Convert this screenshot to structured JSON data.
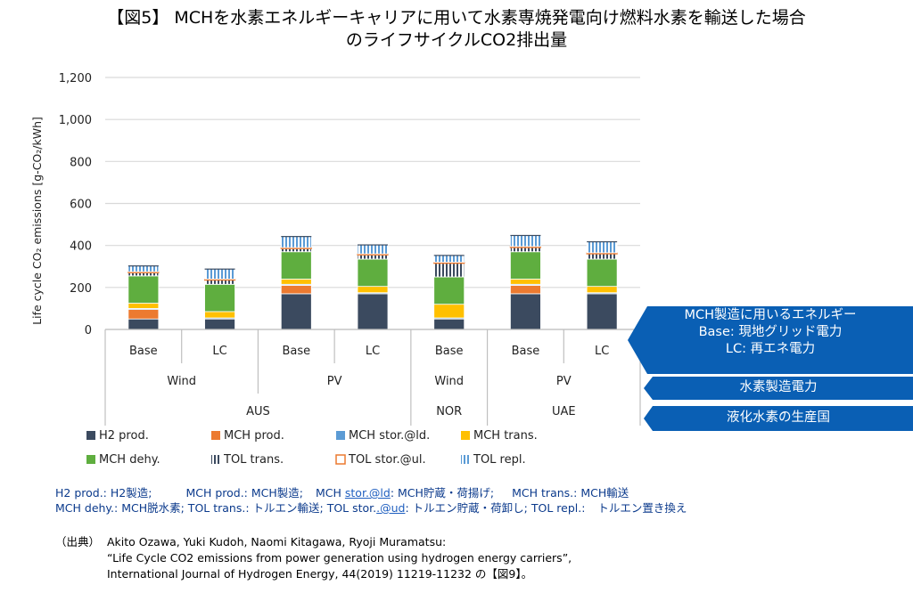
{
  "title": {
    "line1": "【図5】 MCHを水素エネルギーキャリアに用いて水素専焼発電向け燃料水素を輸送した場合",
    "line2": "のライフサイクルCO2排出量"
  },
  "chart_data": {
    "type": "bar",
    "stacked": true,
    "ylabel": "Life cycle CO₂ emissions [g-CO₂/kWh]",
    "ylim": [
      0,
      1200
    ],
    "yticks": [
      "0",
      "200",
      "400",
      "600",
      "800",
      "1,000",
      "1,200"
    ],
    "grid": true,
    "categories": [
      "Base",
      "LC",
      "Base",
      "LC",
      "Base",
      "Base",
      "LC"
    ],
    "groups_source": [
      {
        "label": "Wind",
        "span": [
          0,
          1
        ]
      },
      {
        "label": "PV",
        "span": [
          2,
          3
        ]
      },
      {
        "label": "Wind",
        "span": [
          4,
          4
        ]
      },
      {
        "label": "PV",
        "span": [
          5,
          6
        ]
      }
    ],
    "groups_country": [
      {
        "label": "AUS",
        "span": [
          0,
          3
        ]
      },
      {
        "label": "NOR",
        "span": [
          4,
          4
        ]
      },
      {
        "label": "UAE",
        "span": [
          5,
          6
        ]
      }
    ],
    "legend_placement": "bottom",
    "series": [
      {
        "name": "H2 prod.",
        "color": "#3b4a5f",
        "pattern": "solid",
        "values": [
          50,
          50,
          170,
          170,
          50,
          170,
          170
        ]
      },
      {
        "name": "MCH prod.",
        "color": "#ec7a30",
        "pattern": "solid",
        "values": [
          45,
          0,
          40,
          0,
          0,
          40,
          0
        ]
      },
      {
        "name": "MCH stor.@ld.",
        "color": "#5b9bd5",
        "pattern": "solid",
        "values": [
          5,
          5,
          5,
          5,
          5,
          5,
          5
        ]
      },
      {
        "name": "MCH trans.",
        "color": "#ffc000",
        "pattern": "solid",
        "values": [
          25,
          30,
          25,
          30,
          65,
          25,
          30
        ]
      },
      {
        "name": "MCH dehy.",
        "color": "#5fae3f",
        "pattern": "solid",
        "values": [
          130,
          130,
          130,
          130,
          130,
          130,
          130
        ]
      },
      {
        "name": "TOL trans.",
        "color": "#3b4a5f",
        "pattern": "vstripe",
        "values": [
          15,
          20,
          15,
          20,
          65,
          20,
          25
        ]
      },
      {
        "name": "TOL stor.@ul.",
        "color": "#ec7a30",
        "pattern": "outline",
        "values": [
          5,
          5,
          5,
          5,
          5,
          5,
          5
        ]
      },
      {
        "name": "TOL repl.",
        "color": "#5b9bd5",
        "pattern": "vstripe",
        "values": [
          30,
          50,
          55,
          45,
          35,
          55,
          55
        ]
      }
    ]
  },
  "callouts": {
    "energy_title": "MCH製造に用いるエネルギー",
    "energy_base": "Base:  現地グリッド電力",
    "energy_lc": "LC:  再エネ電力",
    "power": "水素製造電力",
    "country": "液化水素の生産国",
    "color": "#0a5fb4"
  },
  "abbrev": {
    "line1_a": "H2 prod.: H2製造;",
    "line1_b": "MCH prod.: MCH製造;",
    "line1_c": "MCH ",
    "line1_link": "stor.@ld",
    "line1_d": ": MCH貯蔵・荷揚げ;",
    "line1_e": "MCH trans.: MCH輸送",
    "line2_a": "MCH dehy.: MCH脱水素; TOL trans.: トルエン輸送; TOL stor.",
    "line2_link": ".@ud",
    "line2_b": ": トルエン貯蔵・荷卸し;  TOL repl.:",
    "line2_c": "トルエン置き換え"
  },
  "source": {
    "label": "（出典）",
    "line1": "Akito Ozawa, Yuki Kudoh, Naomi Kitagawa, Ryoji Muramatsu:",
    "line2": "“Life Cycle CO2 emissions from power generation using hydrogen energy carriers”,",
    "line3": "International Journal of Hydrogen Energy,  44(2019) 11219-11232 の【図9】。"
  }
}
